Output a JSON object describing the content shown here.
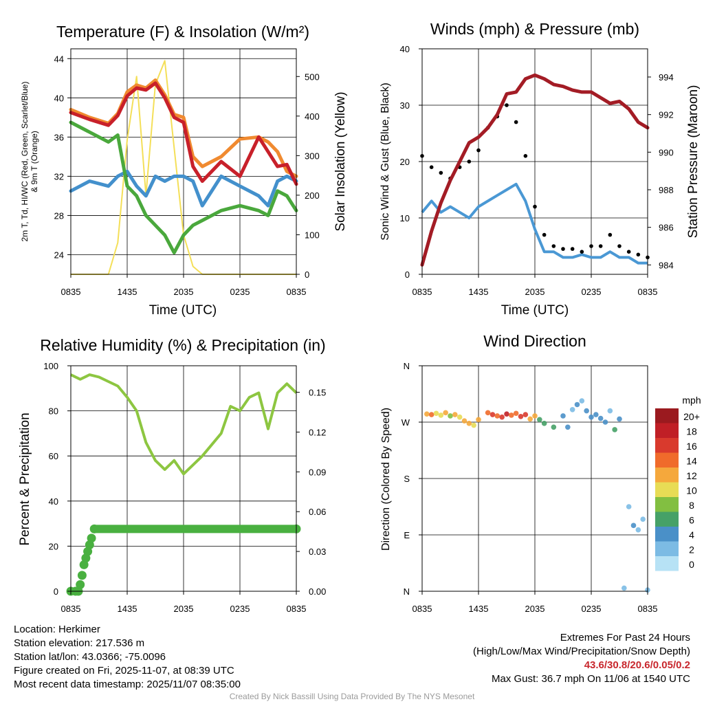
{
  "panels": {
    "temp": {
      "title": "Temperature (F) & Insolation (W/m²)",
      "ylabel_left_line1": "2m T, Td, HI/WC (Red, Green, Scarlet/Blue)",
      "ylabel_left_line2": "& 9m T (Orange)",
      "ylabel_right": "Solar Insolation (Yellow)",
      "xlabel": "Time (UTC)",
      "xticks": [
        "0835",
        "1435",
        "2035",
        "0235",
        "0835"
      ],
      "yticks_left": [
        "24",
        "28",
        "32",
        "36",
        "40",
        "44"
      ],
      "yticks_right": [
        "0",
        "100",
        "200",
        "300",
        "400",
        "500"
      ]
    },
    "wind": {
      "title": "Winds (mph) & Pressure (mb)",
      "ylabel_left": "Sonic Wind & Gust (Blue, Black)",
      "ylabel_right": "Station Pressure (Maroon)",
      "xlabel": "Time (UTC)",
      "xticks": [
        "0835",
        "1435",
        "2035",
        "0235",
        "0835"
      ],
      "yticks_left": [
        "0",
        "10",
        "20",
        "30",
        "40"
      ],
      "yticks_right": [
        "984",
        "986",
        "988",
        "990",
        "992",
        "994"
      ]
    },
    "rh": {
      "title": "Relative Humidity (%) & Precipitation (in)",
      "ylabel_left": "Percent & Precipitation",
      "xticks": [
        "0835",
        "1435",
        "2035",
        "0235",
        "0835"
      ],
      "yticks_left": [
        "0",
        "20",
        "40",
        "60",
        "80",
        "100"
      ],
      "yticks_right": [
        "0.00",
        "0.03",
        "0.06",
        "0.09",
        "0.12",
        "0.15"
      ]
    },
    "dir": {
      "title": "Wind Direction",
      "ylabel_left": "Direction (Colored By Speed)",
      "xticks": [
        "0835",
        "1435",
        "2035",
        "0235",
        "0835"
      ],
      "yticks_left": [
        "N",
        "W",
        "S",
        "E",
        "N"
      ],
      "legend_title": "mph",
      "legend_labels": [
        "20+",
        "18",
        "16",
        "14",
        "12",
        "10",
        "8",
        "6",
        "4",
        "2",
        "0"
      ]
    }
  },
  "colors": {
    "temp_red": "#c8202a",
    "temp_orange": "#f08a30",
    "dewpoint_green": "#4aa83c",
    "windchill_blue": "#4390cc",
    "insolation_yellow": "#f4df58",
    "gust_black": "#000000",
    "wind_blue": "#4a98d4",
    "pressure_maroon": "#a31c25",
    "rh_green": "#8dc641",
    "precip_green": "#49b040",
    "speed_bins": [
      "#b7e2f5",
      "#7cbbe4",
      "#4a90c8",
      "#46a167",
      "#82bf41",
      "#e8dc55",
      "#f5a83c",
      "#f06b2b",
      "#d93a2d",
      "#c01f26",
      "#9b1a1f"
    ]
  },
  "info": {
    "location": "Location: Herkimer",
    "elevation": "Station elevation: 217.536 m",
    "latlon": "Station lat/lon: 43.0366; -75.0096",
    "created": "Figure created on Fri, 2025-11-07, at 08:39 UTC",
    "recent": "Most recent data timestamp: 2025/11/07 08:35:00",
    "extremes_title": "Extremes For Past 24 Hours",
    "extremes_subtitle": "(High/Low/Max Wind/Precipitation/Snow Depth)",
    "extremes_values": "43.6/30.8/20.6/0.05/0.2",
    "max_gust": "Max Gust: 36.7 mph On 11/06 at 1540 UTC",
    "credit": "Created By Nick Bassill Using Data Provided By The NYS Mesonet"
  },
  "chart_data": [
    {
      "type": "line",
      "title": "Temperature (F) & Insolation (W/m²)",
      "xlabel": "Time (UTC)",
      "x_hours": [
        0,
        2,
        4,
        5,
        6,
        7,
        8,
        9,
        10,
        11,
        12,
        13,
        14,
        16,
        18,
        20,
        21,
        22,
        23,
        24
      ],
      "ylim": [
        22,
        45
      ],
      "y2lim": [
        0,
        570
      ],
      "series": [
        {
          "name": "2m T (Red)",
          "axis": "left",
          "values": [
            38.5,
            37.8,
            37.2,
            38.2,
            40.2,
            41.0,
            40.8,
            41.5,
            40.0,
            38.0,
            37.5,
            33.0,
            31.5,
            33.5,
            32.0,
            36.0,
            34.5,
            33.0,
            33.2,
            31.2
          ]
        },
        {
          "name": "9m T (Orange)",
          "axis": "left",
          "values": [
            38.8,
            38.0,
            37.4,
            38.4,
            40.6,
            41.3,
            41.0,
            41.8,
            40.3,
            38.3,
            38.0,
            34.0,
            33.0,
            34.0,
            35.8,
            36.0,
            35.5,
            34.5,
            32.5,
            32.0
          ]
        },
        {
          "name": "Dewpoint (Green)",
          "axis": "left",
          "values": [
            37.5,
            36.5,
            35.5,
            36.2,
            31.0,
            30.0,
            28.0,
            27.0,
            26.0,
            24.2,
            26.0,
            27.0,
            27.5,
            28.5,
            29.0,
            28.5,
            28.0,
            30.5,
            30.0,
            28.5
          ]
        },
        {
          "name": "HI/WC (Blue)",
          "axis": "left",
          "values": [
            30.5,
            31.5,
            31.0,
            32.0,
            32.5,
            31.0,
            30.0,
            32.0,
            31.5,
            32.0,
            32.0,
            31.5,
            29.0,
            32.0,
            31.0,
            30.0,
            29.0,
            31.5,
            32.0,
            31.5
          ]
        },
        {
          "name": "Solar Insolation (Yellow)",
          "axis": "right",
          "values": [
            0,
            0,
            0,
            80,
            340,
            500,
            200,
            480,
            540,
            320,
            100,
            20,
            0,
            0,
            0,
            0,
            0,
            0,
            0,
            0
          ]
        }
      ]
    },
    {
      "type": "line",
      "title": "Winds (mph) & Pressure (mb)",
      "xlabel": "Time (UTC)",
      "x_hours": [
        0,
        1,
        2,
        3,
        4,
        5,
        6,
        7,
        8,
        9,
        10,
        11,
        12,
        13,
        14,
        15,
        16,
        17,
        18,
        19,
        20,
        21,
        22,
        23,
        24
      ],
      "ylim": [
        0,
        40
      ],
      "y2lim": [
        983.5,
        995.5
      ],
      "series": [
        {
          "name": "Sonic Wind (Blue)",
          "axis": "left",
          "values": [
            11,
            13,
            11,
            12,
            11,
            10,
            12,
            13,
            14,
            15,
            16,
            13,
            8,
            4,
            4,
            3,
            3,
            3.5,
            3,
            3,
            4,
            3,
            3,
            2,
            2
          ]
        },
        {
          "name": "Gust (Black)",
          "axis": "left",
          "values": [
            21,
            19,
            18,
            17,
            19,
            20,
            22,
            26,
            28,
            30,
            27,
            21,
            12,
            7,
            5,
            4.5,
            4.5,
            4,
            5,
            5,
            7,
            5,
            4,
            3.5,
            3
          ]
        },
        {
          "name": "Station Pressure (Maroon)",
          "axis": "right",
          "values": [
            984.0,
            985.8,
            987.3,
            988.5,
            989.5,
            990.5,
            990.8,
            991.3,
            992.0,
            993.1,
            993.2,
            993.9,
            994.1,
            993.9,
            993.6,
            993.5,
            993.3,
            993.2,
            993.2,
            992.9,
            992.6,
            992.7,
            992.3,
            991.6,
            991.3
          ]
        }
      ]
    },
    {
      "type": "line",
      "title": "Relative Humidity (%) & Precipitation (in)",
      "x_hours": [
        0,
        1,
        2,
        3,
        4,
        5,
        6,
        7,
        8,
        9,
        10,
        11,
        12,
        13,
        14,
        15,
        16,
        17,
        18,
        19,
        20,
        21,
        22,
        23,
        24
      ],
      "ylim": [
        0,
        100
      ],
      "y2lim": [
        0,
        0.17
      ],
      "series": [
        {
          "name": "RH (Green)",
          "axis": "left",
          "values": [
            96,
            94,
            96,
            95,
            93,
            91,
            86,
            80,
            66,
            58,
            54,
            58,
            52,
            56,
            60,
            65,
            70,
            82,
            80,
            86,
            88,
            72,
            88,
            92,
            88
          ]
        },
        {
          "name": "Precipitation (Green dots)",
          "axis": "right",
          "x_hours": [
            0,
            0.5,
            0.8,
            1.0,
            1.2,
            1.4,
            1.6,
            1.8,
            2.0,
            2.2,
            2.5,
            24
          ],
          "values": [
            0,
            0,
            0,
            0.005,
            0.012,
            0.02,
            0.025,
            0.03,
            0.035,
            0.04,
            0.047,
            0.047
          ]
        }
      ]
    },
    {
      "type": "scatter",
      "title": "Wind Direction",
      "ylabel": "Direction (Colored By Speed)",
      "ylim_deg": [
        0,
        360
      ],
      "y_ticks": [
        "N",
        "W",
        "S",
        "E",
        "N"
      ],
      "points_hours_deg_speed": [
        [
          0.5,
          283,
          12
        ],
        [
          1.0,
          282,
          13
        ],
        [
          1.5,
          284,
          10
        ],
        [
          2.0,
          281,
          9
        ],
        [
          2.5,
          285,
          11
        ],
        [
          3.0,
          280,
          8
        ],
        [
          3.5,
          282,
          12
        ],
        [
          4.0,
          278,
          10
        ],
        [
          4.5,
          272,
          12
        ],
        [
          5.0,
          268,
          11
        ],
        [
          5.5,
          265,
          10
        ],
        [
          6.0,
          274,
          12
        ],
        [
          7.0,
          285,
          13
        ],
        [
          7.5,
          282,
          15
        ],
        [
          8.0,
          280,
          14
        ],
        [
          8.5,
          278,
          16
        ],
        [
          9.0,
          283,
          17
        ],
        [
          9.5,
          281,
          14
        ],
        [
          10.0,
          284,
          13
        ],
        [
          10.5,
          279,
          16
        ],
        [
          11.0,
          282,
          15
        ],
        [
          11.5,
          275,
          12
        ],
        [
          12.0,
          280,
          11
        ],
        [
          12.5,
          274,
          6
        ],
        [
          13.0,
          268,
          5
        ],
        [
          14.0,
          262,
          5
        ],
        [
          15.0,
          280,
          3
        ],
        [
          15.5,
          262,
          4
        ],
        [
          16.0,
          290,
          2
        ],
        [
          16.5,
          298,
          3
        ],
        [
          17.0,
          304,
          2
        ],
        [
          17.5,
          288,
          3
        ],
        [
          18.0,
          278,
          4
        ],
        [
          18.5,
          282,
          3
        ],
        [
          19.0,
          276,
          4
        ],
        [
          19.5,
          270,
          4
        ],
        [
          20.0,
          288,
          2
        ],
        [
          20.5,
          258,
          6
        ],
        [
          21.0,
          275,
          3
        ],
        [
          21.5,
          5,
          1
        ],
        [
          22.0,
          135,
          2
        ],
        [
          22.5,
          105,
          3
        ],
        [
          23.0,
          98,
          2
        ],
        [
          23.5,
          115,
          2
        ],
        [
          24.0,
          2,
          1
        ]
      ]
    }
  ]
}
